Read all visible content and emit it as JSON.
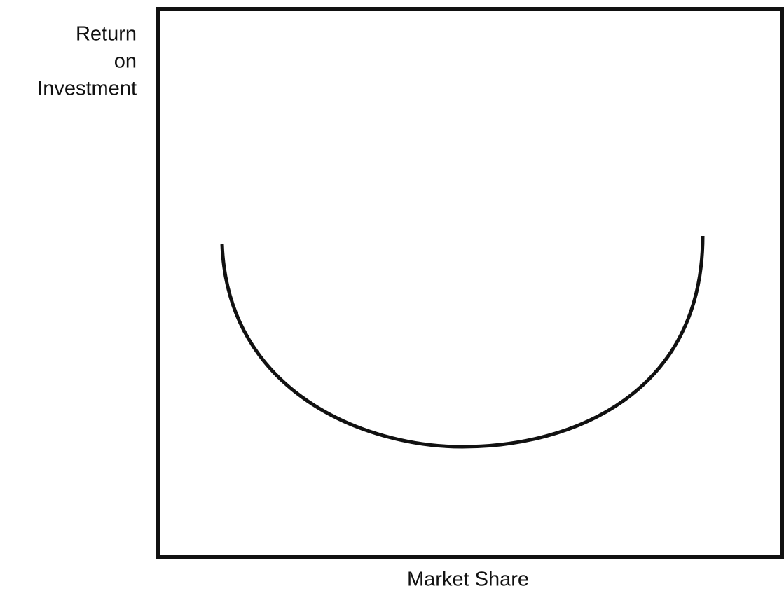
{
  "y_axis_label": [
    "Return",
    "on",
    "Investment"
  ],
  "x_axis_label": "Market Share"
}
